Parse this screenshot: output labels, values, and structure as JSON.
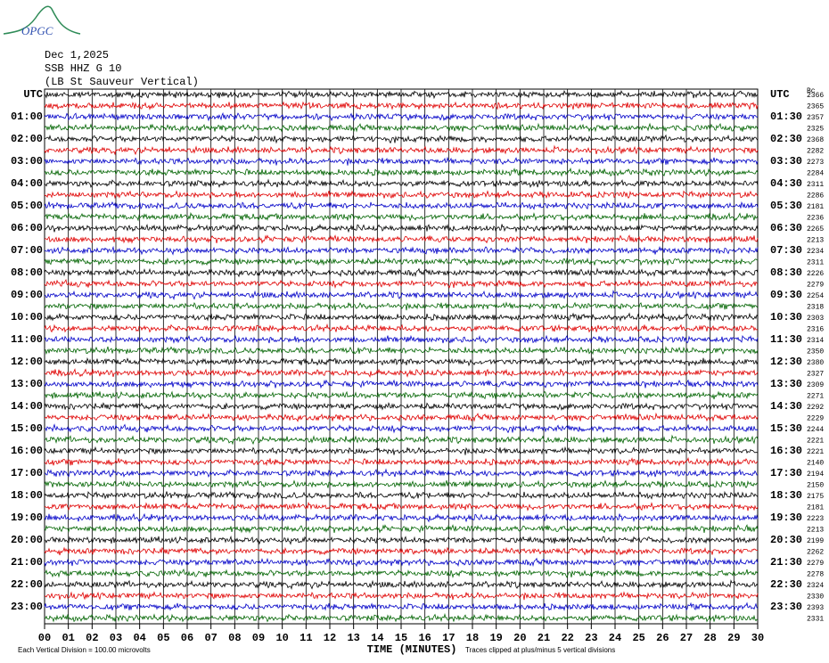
{
  "chart_data": {
    "type": "helicorder",
    "logo": "OPGC",
    "date": "Dec 1,2025",
    "station": "SSB HHZ G 10",
    "location": "(LB St Sauveur Vertical)",
    "corner_label": "Bc",
    "xlabel": "TIME (MINUTES)",
    "footer_left": "Each Vertical Division =  100.00 microvolts",
    "footer_right": "Traces clipped at plus/minus 5 vertical divisions",
    "xlim": [
      0,
      30
    ],
    "xticks": [
      {
        "value": 0,
        "label": "00"
      },
      {
        "value": 1,
        "label": "01"
      },
      {
        "value": 2,
        "label": "02"
      },
      {
        "value": 3,
        "label": "03"
      },
      {
        "value": 4,
        "label": "04"
      },
      {
        "value": 5,
        "label": "05"
      },
      {
        "value": 6,
        "label": "06"
      },
      {
        "value": 7,
        "label": "07"
      },
      {
        "value": 8,
        "label": "08"
      },
      {
        "value": 9,
        "label": "09"
      },
      10,
      11,
      12,
      13,
      14,
      15,
      16,
      17,
      18,
      19,
      20,
      21,
      22,
      23,
      24,
      25,
      26,
      27,
      28,
      29,
      30
    ],
    "row_labels_left": [
      "UTC",
      null,
      "01:00",
      null,
      "02:00",
      null,
      "03:00",
      null,
      "04:00",
      null,
      "05:00",
      null,
      "06:00",
      null,
      "07:00",
      null,
      "08:00",
      null,
      "09:00",
      null,
      "10:00",
      null,
      "11:00",
      null,
      "12:00",
      null,
      "13:00",
      null,
      "14:00",
      null,
      "15:00",
      null,
      "16:00",
      null,
      "17:00",
      null,
      "18:00",
      null,
      "19:00",
      null,
      "20:00",
      null,
      "21:00",
      null,
      "22:00",
      null,
      "23:00",
      null
    ],
    "row_labels_right": [
      "UTC",
      null,
      "01:30",
      null,
      "02:30",
      null,
      "03:30",
      null,
      "04:30",
      null,
      "05:30",
      null,
      "06:30",
      null,
      "07:30",
      null,
      "08:30",
      null,
      "09:30",
      null,
      "10:30",
      null,
      "11:30",
      null,
      "12:30",
      null,
      "13:30",
      null,
      "14:30",
      null,
      "15:30",
      null,
      "16:30",
      null,
      "17:30",
      null,
      "18:30",
      null,
      "19:30",
      null,
      "20:30",
      null,
      "21:30",
      null,
      "22:30",
      null,
      "23:30",
      null
    ],
    "trace_values": [
      2366,
      2365,
      2357,
      2325,
      2368,
      2282,
      2273,
      2284,
      2311,
      2286,
      2181,
      2236,
      2265,
      2213,
      2234,
      2311,
      2226,
      2279,
      2254,
      2318,
      2303,
      2316,
      2314,
      2350,
      2380,
      2327,
      2309,
      2271,
      2292,
      2229,
      2244,
      2221,
      2221,
      2140,
      2194,
      2150,
      2175,
      2181,
      2223,
      2213,
      2199,
      2262,
      2279,
      2278,
      2324,
      2330,
      2393,
      2331
    ],
    "colors": [
      "#000000",
      "#e00000",
      "#0000c8",
      "#006400"
    ]
  }
}
